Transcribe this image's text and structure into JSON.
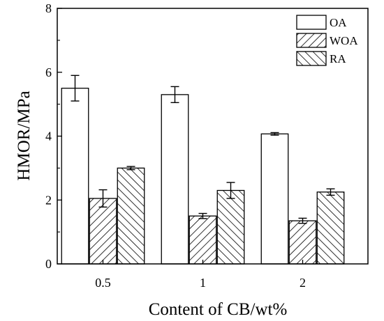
{
  "chart_data": {
    "type": "bar",
    "categories": [
      "0.5",
      "1",
      "2"
    ],
    "series": [
      {
        "name": "OA",
        "values": [
          5.5,
          5.3,
          4.07
        ],
        "errors": [
          0.4,
          0.25,
          0.04
        ],
        "pattern": "none"
      },
      {
        "name": "WOA",
        "values": [
          2.05,
          1.5,
          1.35
        ],
        "errors": [
          0.27,
          0.08,
          0.08
        ],
        "pattern": "forward-hatch"
      },
      {
        "name": "RA",
        "values": [
          3.0,
          2.3,
          2.25
        ],
        "errors": [
          0.05,
          0.25,
          0.1
        ],
        "pattern": "back-hatch"
      }
    ],
    "xlabel": "Content of CB/wt%",
    "ylabel": "HMOR/MPa",
    "ylim": [
      0,
      8
    ],
    "yticks": [
      "0",
      "2",
      "4",
      "6",
      "8"
    ],
    "grid": false,
    "legend_position": "top-right",
    "colors": {
      "stroke": "#000000",
      "fill": "#ffffff"
    }
  }
}
